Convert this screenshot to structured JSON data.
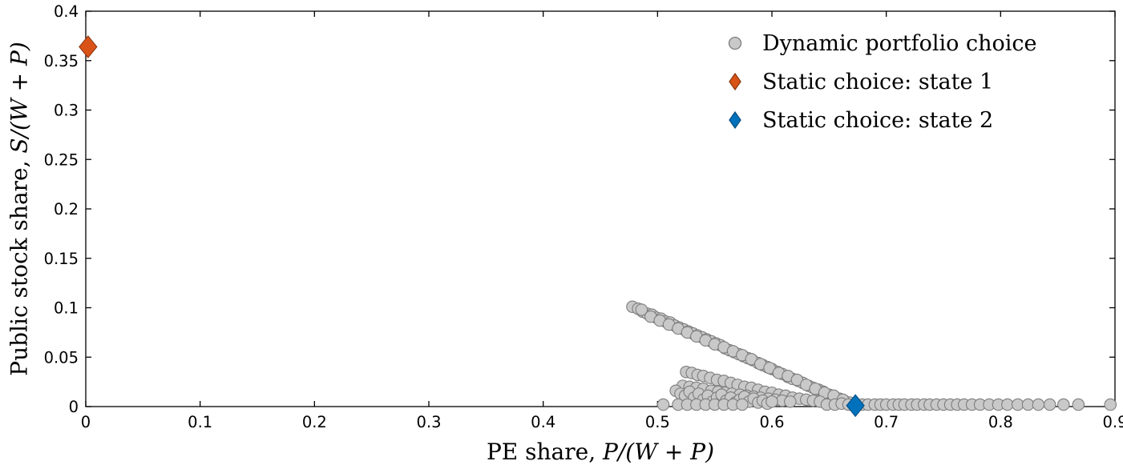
{
  "figure": {
    "background": "#ffffff",
    "axes_color": "#000000"
  },
  "chart_data": {
    "type": "scatter",
    "title": "",
    "xlabel_prefix": "PE share, ",
    "xlabel_math": "P/(W + P)",
    "ylabel_prefix": "Public stock share, ",
    "ylabel_math": "S/(W + P)",
    "xlim": [
      0,
      0.9
    ],
    "ylim": [
      0,
      0.4
    ],
    "grid": false,
    "box": true,
    "xticks": [
      0,
      0.1,
      0.2,
      0.3,
      0.4,
      0.5,
      0.6,
      0.7,
      0.8,
      0.9
    ],
    "xtick_labels": [
      "0",
      "0.1",
      "0.2",
      "0.3",
      "0.4",
      "0.5",
      "0.6",
      "0.7",
      "0.8",
      "0.9"
    ],
    "yticks": [
      0,
      0.05,
      0.1,
      0.15,
      0.2,
      0.25,
      0.3,
      0.35,
      0.4
    ],
    "ytick_labels": [
      "0",
      "0.05",
      "0.1",
      "0.15",
      "0.2",
      "0.25",
      "0.3",
      "0.35",
      "0.4"
    ],
    "legend": {
      "position": "northeast-inside",
      "border": false,
      "items": [
        {
          "label": "Dynamic portfolio choice",
          "marker": "circle",
          "fill": "#c9c9c9",
          "edge": "#7d7d7d"
        },
        {
          "label": "Static choice: state 1",
          "marker": "diamond",
          "fill": "#d95319",
          "edge": "#8c3a10"
        },
        {
          "label": "Static choice: state 2",
          "marker": "diamond",
          "fill": "#0072bd",
          "edge": "#074f80"
        }
      ]
    },
    "series": [
      {
        "name": "Dynamic portfolio choice",
        "marker": "circle",
        "fill": "#c9c9c9",
        "edge": "#7d7d7d",
        "points": [
          [
            0.478,
            0.101
          ],
          [
            0.483,
            0.099
          ],
          [
            0.487,
            0.096
          ],
          [
            0.491,
            0.094
          ],
          [
            0.495,
            0.093
          ],
          [
            0.499,
            0.09
          ],
          [
            0.503,
            0.089
          ],
          [
            0.507,
            0.086
          ],
          [
            0.511,
            0.085
          ],
          [
            0.515,
            0.082
          ],
          [
            0.519,
            0.08
          ],
          [
            0.523,
            0.078
          ],
          [
            0.527,
            0.076
          ],
          [
            0.531,
            0.074
          ],
          [
            0.535,
            0.072
          ],
          [
            0.539,
            0.07
          ],
          [
            0.543,
            0.068
          ],
          [
            0.547,
            0.066
          ],
          [
            0.551,
            0.064
          ],
          [
            0.555,
            0.062
          ],
          [
            0.559,
            0.059
          ],
          [
            0.563,
            0.057
          ],
          [
            0.567,
            0.055
          ],
          [
            0.571,
            0.053
          ],
          [
            0.575,
            0.051
          ],
          [
            0.579,
            0.049
          ],
          [
            0.583,
            0.047
          ],
          [
            0.588,
            0.044
          ],
          [
            0.592,
            0.042
          ],
          [
            0.596,
            0.04
          ],
          [
            0.6,
            0.038
          ],
          [
            0.605,
            0.035
          ],
          [
            0.609,
            0.033
          ],
          [
            0.614,
            0.03
          ],
          [
            0.618,
            0.028
          ],
          [
            0.623,
            0.026
          ],
          [
            0.627,
            0.024
          ],
          [
            0.632,
            0.021
          ],
          [
            0.636,
            0.019
          ],
          [
            0.641,
            0.017
          ],
          [
            0.645,
            0.015
          ],
          [
            0.65,
            0.012
          ],
          [
            0.654,
            0.01
          ],
          [
            0.659,
            0.008
          ],
          [
            0.663,
            0.006
          ],
          [
            0.668,
            0.004
          ],
          [
            0.486,
            0.098
          ],
          [
            0.494,
            0.091
          ],
          [
            0.502,
            0.087
          ],
          [
            0.51,
            0.083
          ],
          [
            0.518,
            0.079
          ],
          [
            0.526,
            0.075
          ],
          [
            0.534,
            0.071
          ],
          [
            0.542,
            0.067
          ],
          [
            0.55,
            0.063
          ],
          [
            0.558,
            0.06
          ],
          [
            0.566,
            0.056
          ],
          [
            0.574,
            0.052
          ],
          [
            0.582,
            0.048
          ],
          [
            0.59,
            0.043
          ],
          [
            0.598,
            0.039
          ],
          [
            0.606,
            0.034
          ],
          [
            0.614,
            0.031
          ],
          [
            0.622,
            0.027
          ],
          [
            0.63,
            0.022
          ],
          [
            0.638,
            0.018
          ],
          [
            0.646,
            0.014
          ],
          [
            0.654,
            0.011
          ],
          [
            0.662,
            0.007
          ],
          [
            0.525,
            0.035
          ],
          [
            0.53,
            0.034
          ],
          [
            0.535,
            0.032
          ],
          [
            0.54,
            0.031
          ],
          [
            0.546,
            0.029
          ],
          [
            0.552,
            0.027
          ],
          [
            0.558,
            0.026
          ],
          [
            0.564,
            0.024
          ],
          [
            0.57,
            0.022
          ],
          [
            0.576,
            0.02
          ],
          [
            0.582,
            0.019
          ],
          [
            0.588,
            0.017
          ],
          [
            0.594,
            0.015
          ],
          [
            0.6,
            0.014
          ],
          [
            0.606,
            0.012
          ],
          [
            0.612,
            0.011
          ],
          [
            0.618,
            0.009
          ],
          [
            0.624,
            0.008
          ],
          [
            0.63,
            0.007
          ],
          [
            0.636,
            0.006
          ],
          [
            0.642,
            0.005
          ],
          [
            0.522,
            0.021
          ],
          [
            0.528,
            0.02
          ],
          [
            0.534,
            0.019
          ],
          [
            0.54,
            0.018
          ],
          [
            0.547,
            0.016
          ],
          [
            0.553,
            0.015
          ],
          [
            0.559,
            0.014
          ],
          [
            0.565,
            0.013
          ],
          [
            0.572,
            0.012
          ],
          [
            0.578,
            0.011
          ],
          [
            0.584,
            0.01
          ],
          [
            0.59,
            0.009
          ],
          [
            0.597,
            0.008
          ],
          [
            0.603,
            0.007
          ],
          [
            0.609,
            0.006
          ],
          [
            0.616,
            0.005
          ],
          [
            0.516,
            0.016
          ],
          [
            0.52,
            0.013
          ],
          [
            0.524,
            0.011
          ],
          [
            0.528,
            0.015
          ],
          [
            0.532,
            0.009
          ],
          [
            0.536,
            0.013
          ],
          [
            0.54,
            0.007
          ],
          [
            0.544,
            0.011
          ],
          [
            0.548,
            0.005
          ],
          [
            0.552,
            0.009
          ],
          [
            0.556,
            0.012
          ],
          [
            0.56,
            0.006
          ],
          [
            0.564,
            0.009
          ],
          [
            0.568,
            0.004
          ],
          [
            0.572,
            0.007
          ],
          [
            0.576,
            0.01
          ],
          [
            0.58,
            0.005
          ],
          [
            0.584,
            0.008
          ],
          [
            0.588,
            0.004
          ],
          [
            0.592,
            0.006
          ],
          [
            0.596,
            0.003
          ],
          [
            0.6,
            0.005
          ],
          [
            0.518,
            0.002
          ],
          [
            0.526,
            0.002
          ],
          [
            0.534,
            0.002
          ],
          [
            0.542,
            0.002
          ],
          [
            0.55,
            0.002
          ],
          [
            0.558,
            0.002
          ],
          [
            0.566,
            0.002
          ],
          [
            0.574,
            0.002
          ],
          [
            0.505,
            0.002
          ],
          [
            0.648,
            0.002
          ],
          [
            0.655,
            0.002
          ],
          [
            0.661,
            0.003
          ],
          [
            0.667,
            0.002
          ],
          [
            0.673,
            0.002
          ],
          [
            0.679,
            0.002
          ],
          [
            0.684,
            0.002
          ],
          [
            0.69,
            0.002
          ],
          [
            0.695,
            0.002
          ],
          [
            0.7,
            0.002
          ],
          [
            0.706,
            0.002
          ],
          [
            0.711,
            0.002
          ],
          [
            0.716,
            0.002
          ],
          [
            0.722,
            0.002
          ],
          [
            0.727,
            0.002
          ],
          [
            0.733,
            0.002
          ],
          [
            0.738,
            0.002
          ],
          [
            0.744,
            0.002
          ],
          [
            0.75,
            0.002
          ],
          [
            0.756,
            0.002
          ],
          [
            0.762,
            0.002
          ],
          [
            0.768,
            0.002
          ],
          [
            0.775,
            0.002
          ],
          [
            0.782,
            0.002
          ],
          [
            0.79,
            0.002
          ],
          [
            0.798,
            0.002
          ],
          [
            0.806,
            0.002
          ],
          [
            0.815,
            0.002
          ],
          [
            0.824,
            0.002
          ],
          [
            0.833,
            0.002
          ],
          [
            0.843,
            0.002
          ],
          [
            0.855,
            0.002
          ],
          [
            0.868,
            0.002
          ],
          [
            0.896,
            0.002
          ]
        ]
      },
      {
        "name": "Static choice: state 1",
        "marker": "diamond",
        "fill": "#d95319",
        "edge": "#8c3a10",
        "points": [
          [
            0.002,
            0.364
          ]
        ]
      },
      {
        "name": "Static choice: state 2",
        "marker": "diamond",
        "fill": "#0072bd",
        "edge": "#074f80",
        "points": [
          [
            0.673,
            0.001
          ]
        ]
      }
    ]
  }
}
